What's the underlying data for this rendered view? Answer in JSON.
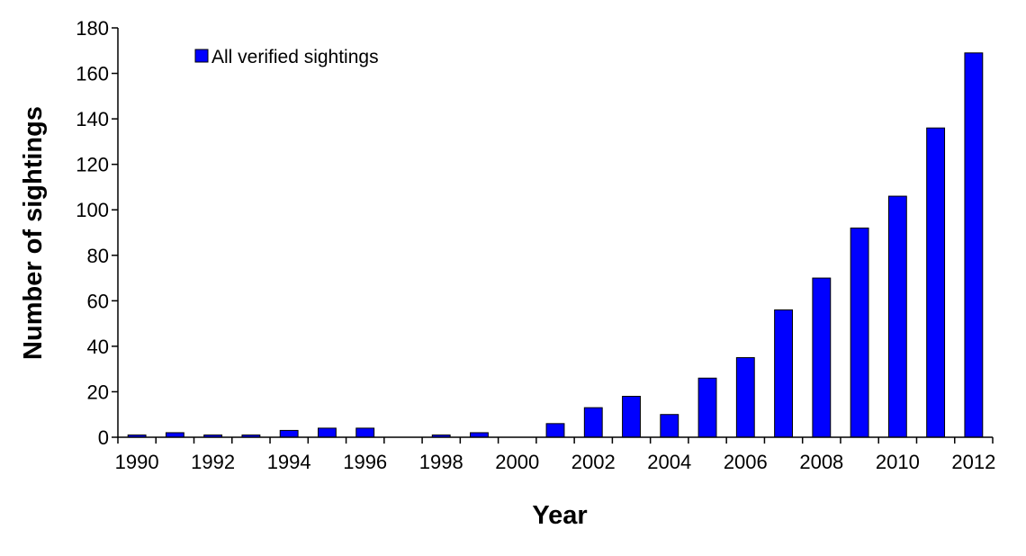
{
  "chart_data": {
    "type": "bar",
    "title": "",
    "xlabel": "Year",
    "ylabel": "Number of sightings",
    "ylim": [
      0,
      180
    ],
    "yticks": [
      0,
      20,
      40,
      60,
      80,
      100,
      120,
      140,
      160,
      180
    ],
    "categories": [
      "1990",
      "1991",
      "1992",
      "1993",
      "1994",
      "1995",
      "1996",
      "1997",
      "1998",
      "1999",
      "2000",
      "2001",
      "2002",
      "2003",
      "2004",
      "2005",
      "2006",
      "2007",
      "2008",
      "2009",
      "2010",
      "2011",
      "2012"
    ],
    "x_tick_labels": [
      "1990",
      "1992",
      "1994",
      "1996",
      "1998",
      "2000",
      "2002",
      "2004",
      "2006",
      "2008",
      "2010",
      "2012"
    ],
    "series": [
      {
        "name": "All verified sightings",
        "color": "#0000ff",
        "values": [
          1,
          2,
          1,
          1,
          3,
          4,
          4,
          0,
          1,
          2,
          0,
          6,
          13,
          18,
          10,
          26,
          35,
          56,
          70,
          92,
          106,
          136,
          169
        ]
      }
    ],
    "legend_position": "top-left",
    "grid": false
  }
}
